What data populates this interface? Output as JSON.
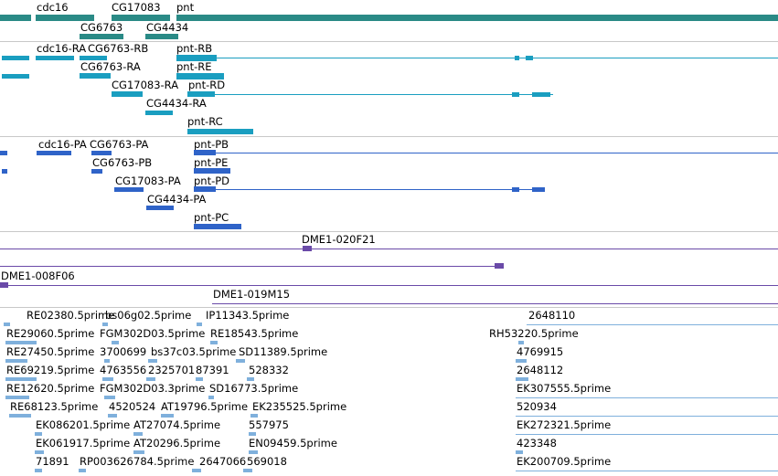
{
  "colors": {
    "gene": "#2a8a86",
    "transcript": "#1a9ec0",
    "protein": "#2f63c8",
    "bac": "#6a4aa8",
    "est": "#7fb0dc",
    "divider": "#c8c8c8"
  },
  "genes": {
    "cdc16": "cdc16",
    "CG17083": "CG17083",
    "pnt": "pnt",
    "CG6763": "CG6763",
    "CG4434": "CG4434"
  },
  "transcripts": {
    "cdc16_RA": "cdc16-RA",
    "CG6763_RB": "CG6763-RB",
    "pnt_RB": "pnt-RB",
    "CG6763_RA": "CG6763-RA",
    "pnt_RE": "pnt-RE",
    "CG17083_RA": "CG17083-RA",
    "pnt_RD": "pnt-RD",
    "CG4434_RA": "CG4434-RA",
    "pnt_RC": "pnt-RC"
  },
  "proteins": {
    "cdc16_PA": "cdc16-PA",
    "CG6763_PA": "CG6763-PA",
    "pnt_PB": "pnt-PB",
    "CG6763_PB": "CG6763-PB",
    "pnt_PE": "pnt-PE",
    "CG17083_PA": "CG17083-PA",
    "pnt_PD": "pnt-PD",
    "CG4434_PA": "CG4434-PA",
    "pnt_PC": "pnt-PC"
  },
  "bacs": {
    "b1": "DME1-020F21",
    "b2": "DME1-008F06",
    "b3": "DME1-019M15"
  },
  "ests": {
    "e1": "RE02380.5prime",
    "e2": "bs06g02.5prime",
    "e3": "IP11343.5prime",
    "e4": "2648110",
    "e5": "RE29060.5prime",
    "e6": "FGM302D03.5prime",
    "e7": "RE18543.5prime",
    "e8": "RH53220.5prime",
    "e9": "RE27450.5prime",
    "e10": "3700699",
    "e11": "bs37c03.5prime",
    "e12": "SD11389.5prime",
    "e13": "4769915",
    "e14": "RE69219.5prime",
    "e15": "4763556",
    "e16": "2325701",
    "e17": "87391",
    "e18": "528332",
    "e19": "2648112",
    "e20": "RE12620.5prime",
    "e21": "FGM302D03.3prime",
    "e22": "SD16773.5prime",
    "e23": "EK307555.5prime",
    "e24": "RE68123.5prime",
    "e25": "4520524",
    "e26": "AT19796.5prime",
    "e27": "EK235525.5prime",
    "e28": "520934",
    "e29": "EK086201.5prime",
    "e30": "AT27074.5prime",
    "e31": "557975",
    "e32": "EK272321.5prime",
    "e33": "EK061917.5prime",
    "e34": "AT20296.5prime",
    "e35": "EN09459.5prime",
    "e36": "423348",
    "e37": "71891",
    "e38": "RP003626",
    "e39": "784.5prime",
    "e40": "2647066",
    "e41": "569018",
    "e42": "EK200709.5prime"
  }
}
